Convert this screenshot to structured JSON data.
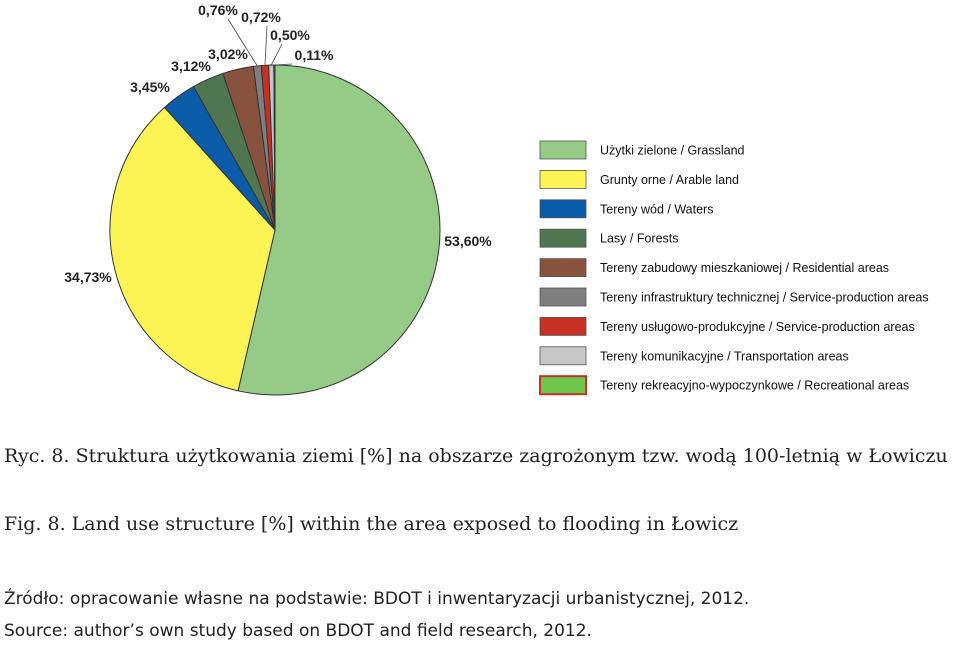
{
  "chart_data": {
    "type": "pie",
    "start": "12 o'clock, clockwise",
    "slices": [
      {
        "label": "Użytki zielone / Grassland",
        "value": 53.6,
        "value_label": "53,60%",
        "color": "#95cb87"
      },
      {
        "label": "Grunty orne / Arable land",
        "value": 34.73,
        "value_label": "34,73%",
        "color": "#fcf454"
      },
      {
        "label": "Tereny wód / Waters",
        "value": 3.45,
        "value_label": "3,45%",
        "color": "#0a5ba8"
      },
      {
        "label": "Lasy / Forests",
        "value": 3.12,
        "value_label": "3,12%",
        "color": "#4f7650"
      },
      {
        "label": "Tereny zabudowy mieszkaniowej / Residential areas",
        "value": 3.02,
        "value_label": "3,02%",
        "color": "#87533f"
      },
      {
        "label": "Tereny infrastruktury technicznej / Service-production areas",
        "value": 0.76,
        "value_label": "0,76%",
        "color": "#7f7f7f"
      },
      {
        "label": "Tereny usługowo-produkcyjne / Service-production areas",
        "value": 0.72,
        "value_label": "0,72%",
        "color": "#c73123"
      },
      {
        "label": "Tereny komunikacyjne / Transportation areas",
        "value": 0.5,
        "value_label": "0,50%",
        "color": "#c7c7c7"
      },
      {
        "label": "Tereny rekreacyjno-wypoczynkowe / Recreational areas",
        "value": 0.11,
        "value_label": "0,11%",
        "color": "#6cc64b",
        "legend_border": "#c73123"
      }
    ],
    "legend_position": "right"
  },
  "caption": {
    "pl": "Ryc. 8. Struktura użytkowania ziemi [%] na obszarze zagrożonym tzw. wodą 100-letnią w Łowiczu",
    "en": "Fig. 8. Land use structure [%] within the area exposed to flooding in Łowicz"
  },
  "source": {
    "pl": "Źródło: opracowanie własne na podstawie: BDOT i inwentaryzacji urbanistycznej, 2012.",
    "en": "Source: author’s own study based on BDOT and field research, 2012."
  }
}
